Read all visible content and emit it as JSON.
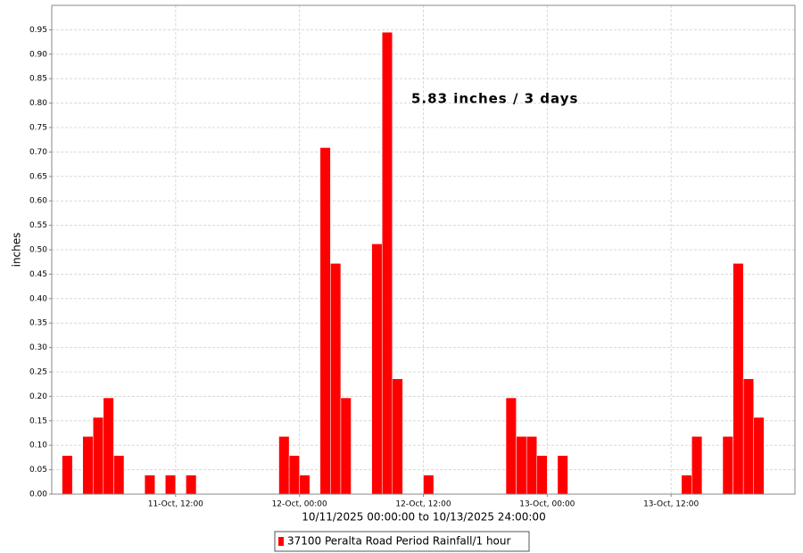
{
  "chart_data": {
    "type": "bar",
    "annotation": "5.83 inches / 3 days",
    "y_label": "inches",
    "x_label": "10/11/2025 00:00:00 to 10/13/2025 24:00:00",
    "xlim": [
      "2025-10-11T00:00",
      "2025-10-14T00:00"
    ],
    "xticks": [
      {
        "value": "2025-10-11T12:00",
        "label": "11-Oct, 12:00"
      },
      {
        "value": "2025-10-12T00:00",
        "label": "12-Oct, 00:00"
      },
      {
        "value": "2025-10-12T12:00",
        "label": "12-Oct, 12:00"
      },
      {
        "value": "2025-10-13T00:00",
        "label": "13-Oct, 00:00"
      },
      {
        "value": "2025-10-13T12:00",
        "label": "13-Oct, 12:00"
      }
    ],
    "ylim": [
      0,
      1.0
    ],
    "yticks": [
      {
        "value": 0,
        "label": "0.00"
      },
      {
        "value": 0.05,
        "label": "0.05"
      },
      {
        "value": 0.1,
        "label": "0.10"
      },
      {
        "value": 0.15,
        "label": "0.15"
      },
      {
        "value": 0.2,
        "label": "0.20"
      },
      {
        "value": 0.25,
        "label": "0.25"
      },
      {
        "value": 0.3,
        "label": "0.30"
      },
      {
        "value": 0.35,
        "label": "0.35"
      },
      {
        "value": 0.4,
        "label": "0.40"
      },
      {
        "value": 0.45,
        "label": "0.45"
      },
      {
        "value": 0.5,
        "label": "0.50"
      },
      {
        "value": 0.55,
        "label": "0.55"
      },
      {
        "value": 0.6,
        "label": "0.60"
      },
      {
        "value": 0.65,
        "label": "0.65"
      },
      {
        "value": 0.7,
        "label": "0.70"
      },
      {
        "value": 0.75,
        "label": "0.75"
      },
      {
        "value": 0.8,
        "label": "0.80"
      },
      {
        "value": 0.85,
        "label": "0.85"
      },
      {
        "value": 0.9,
        "label": "0.90"
      },
      {
        "value": 0.95,
        "label": "0.95"
      }
    ],
    "grid": true,
    "legend": "bottom",
    "x": [
      "2025-10-11T01:00",
      "2025-10-11T03:00",
      "2025-10-11T04:00",
      "2025-10-11T05:00",
      "2025-10-11T06:00",
      "2025-10-11T09:00",
      "2025-10-11T11:00",
      "2025-10-11T13:00",
      "2025-10-11T22:00",
      "2025-10-11T23:00",
      "2025-10-12T00:00",
      "2025-10-12T02:00",
      "2025-10-12T03:00",
      "2025-10-12T04:00",
      "2025-10-12T07:00",
      "2025-10-12T08:00",
      "2025-10-12T09:00",
      "2025-10-12T12:00",
      "2025-10-12T20:00",
      "2025-10-12T21:00",
      "2025-10-12T22:00",
      "2025-10-12T23:00",
      "2025-10-13T01:00",
      "2025-10-13T13:00",
      "2025-10-13T14:00",
      "2025-10-13T17:00",
      "2025-10-13T18:00",
      "2025-10-13T19:00",
      "2025-10-13T20:00"
    ],
    "series": [
      {
        "name": "37100 Peralta Road Period Rainfall/1 hour",
        "color": "#ff0000",
        "values": [
          0.079,
          0.118,
          0.157,
          0.197,
          0.079,
          0.039,
          0.039,
          0.039,
          0.118,
          0.079,
          0.039,
          0.709,
          0.472,
          0.197,
          0.512,
          0.945,
          0.236,
          0.039,
          0.197,
          0.118,
          0.118,
          0.079,
          0.079,
          0.039,
          0.118,
          0.118,
          0.472,
          0.236,
          0.157
        ]
      }
    ]
  }
}
